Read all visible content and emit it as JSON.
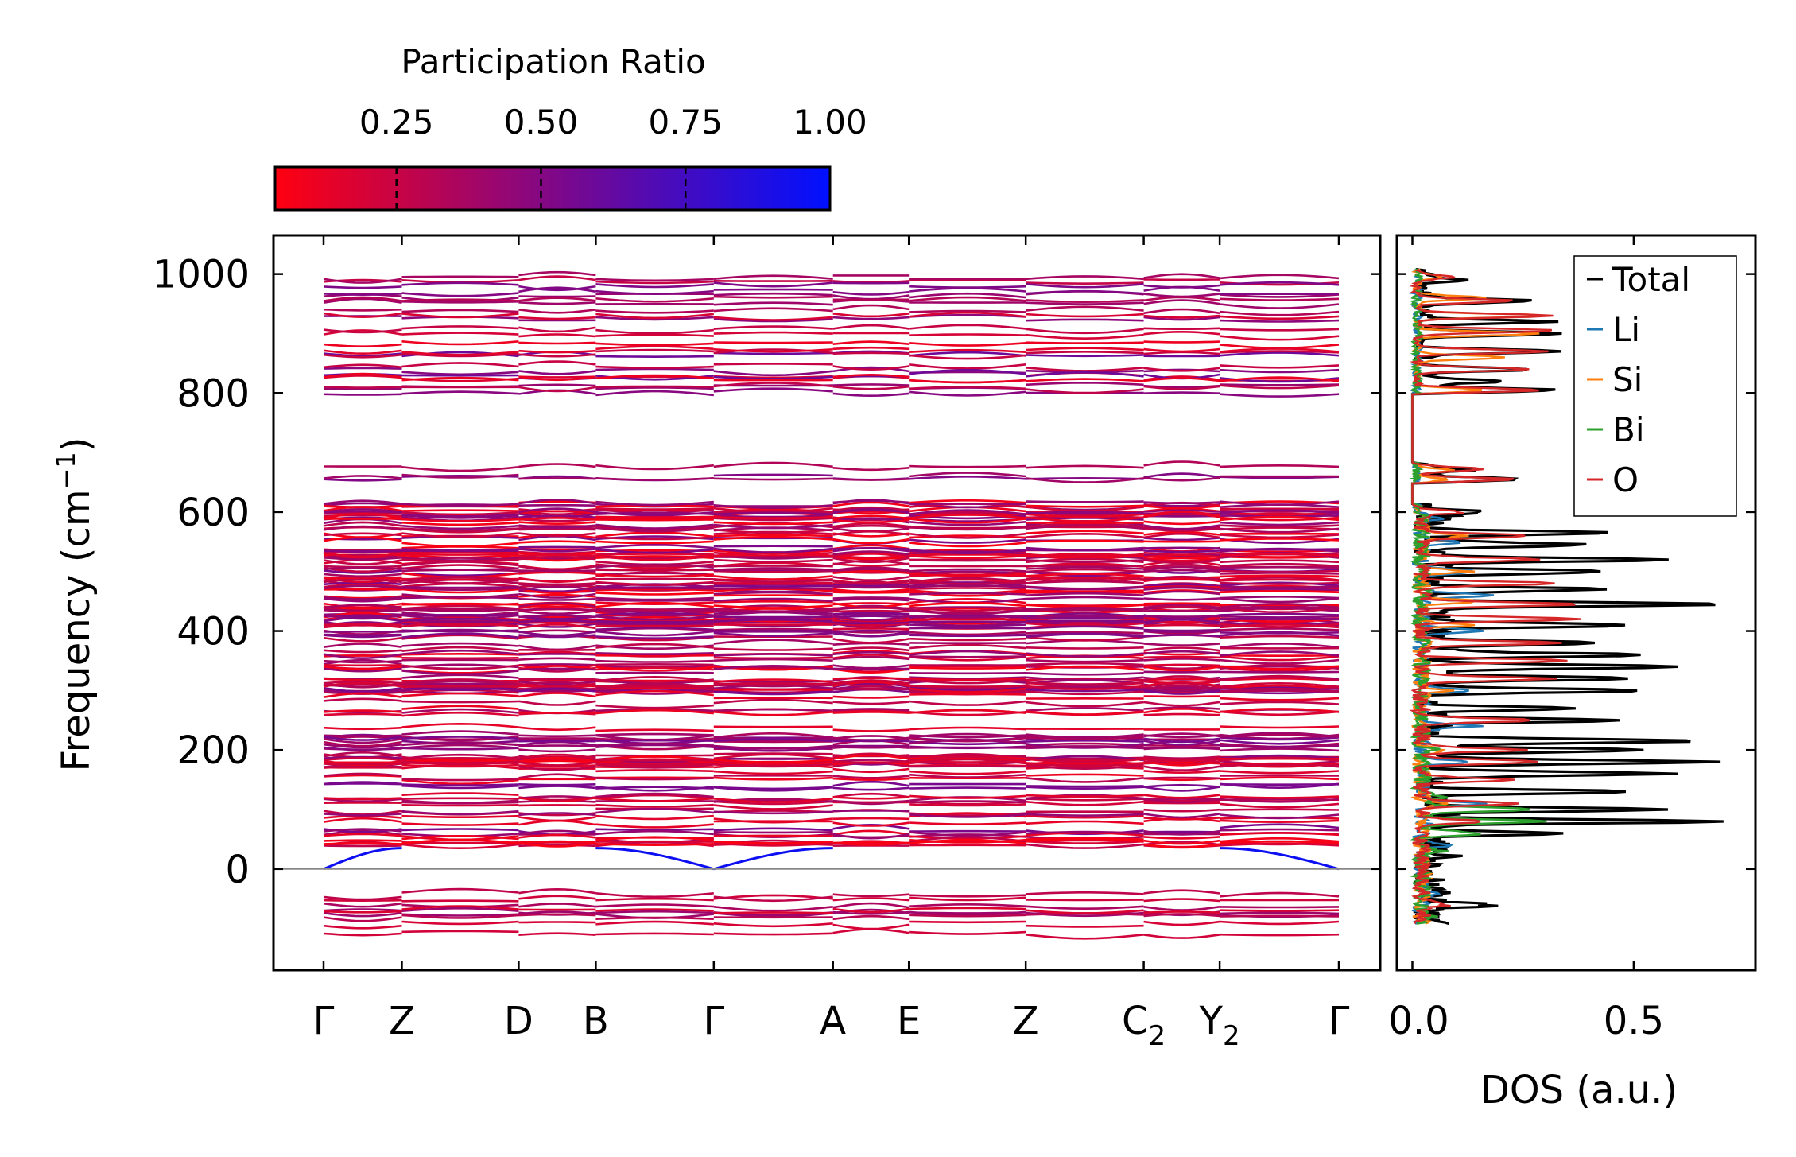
{
  "colorbar": {
    "title": "Participation Ratio",
    "ticks": [
      0.25,
      0.5,
      0.75,
      1.0
    ],
    "tick_labels": [
      "0.25",
      "0.50",
      "0.75",
      "1.00"
    ],
    "range": [
      0.04,
      1.0
    ],
    "color_low": "#ff0010",
    "color_high": "#0010ff"
  },
  "chart_data": [
    {
      "type": "line",
      "name": "phonon-band-structure",
      "ylabel": "Frequency (cm",
      "ylabel_sup": "−1",
      "ylabel_tail": ")",
      "ylim": [
        -170,
        1065
      ],
      "yticks": [
        0,
        200,
        400,
        600,
        800,
        1000
      ],
      "ytick_labels": [
        "0",
        "200",
        "400",
        "600",
        "800",
        "1000"
      ],
      "kpoints": [
        {
          "label": "Γ",
          "sub": ""
        },
        {
          "label": "Z",
          "sub": ""
        },
        {
          "label": "D",
          "sub": ""
        },
        {
          "label": "B",
          "sub": ""
        },
        {
          "label": "Γ",
          "sub": ""
        },
        {
          "label": "A",
          "sub": ""
        },
        {
          "label": "E",
          "sub": ""
        },
        {
          "label": "Z",
          "sub": ""
        },
        {
          "label": "C",
          "sub": "2"
        },
        {
          "label": "Y",
          "sub": "2"
        },
        {
          "label": "Γ",
          "sub": ""
        }
      ],
      "kpath_distance": [
        0,
        0.67,
        1.67,
        2.33,
        3.34,
        4.36,
        5.01,
        6.01,
        7.02,
        7.67,
        8.69
      ],
      "zero_line": 0,
      "branch_frequency_groups": [
        {
          "range": [
            800,
            1005
          ],
          "count": 24,
          "participation": 0.35
        },
        {
          "range": [
            655,
            680
          ],
          "count": 3,
          "participation": 0.4
        },
        {
          "range": [
            40,
            615
          ],
          "count": 150,
          "participation": 0.3
        },
        {
          "range": [
            -110,
            -5
          ],
          "count": 9,
          "participation": 0.3
        }
      ],
      "acoustic_branch": {
        "max_frequency": 35,
        "participation": 0.95
      }
    },
    {
      "type": "line",
      "name": "density-of-states",
      "xlabel": "DOS (a.u.)",
      "xlim": [
        -0.035,
        0.775
      ],
      "xticks": [
        0.0,
        0.5
      ],
      "xtick_labels": [
        "0.0",
        "0.5"
      ],
      "ylim": [
        -170,
        1065
      ],
      "legend_position": "top-right",
      "series": [
        {
          "name": "Total",
          "color": "#000000",
          "peaks": [
            [
              -60,
              0.14
            ],
            [
              20,
              0.04
            ],
            [
              60,
              0.3
            ],
            [
              80,
              0.66
            ],
            [
              100,
              0.55
            ],
            [
              130,
              0.45
            ],
            [
              160,
              0.53
            ],
            [
              180,
              0.64
            ],
            [
              200,
              0.5
            ],
            [
              215,
              0.62
            ],
            [
              250,
              0.42
            ],
            [
              270,
              0.3
            ],
            [
              300,
              0.5
            ],
            [
              320,
              0.46
            ],
            [
              340,
              0.55
            ],
            [
              360,
              0.48
            ],
            [
              380,
              0.4
            ],
            [
              410,
              0.47
            ],
            [
              445,
              0.68
            ],
            [
              470,
              0.4
            ],
            [
              500,
              0.42
            ],
            [
              520,
              0.52
            ],
            [
              545,
              0.35
            ],
            [
              565,
              0.38
            ],
            [
              600,
              0.14
            ],
            [
              655,
              0.22
            ],
            [
              670,
              0.1
            ],
            [
              805,
              0.3
            ],
            [
              820,
              0.2
            ],
            [
              840,
              0.25
            ],
            [
              870,
              0.3
            ],
            [
              900,
              0.33
            ],
            [
              920,
              0.3
            ],
            [
              955,
              0.25
            ],
            [
              990,
              0.1
            ]
          ]
        },
        {
          "name": "Li",
          "color": "#1f77b4",
          "peaks": [
            [
              -40,
              0.03
            ],
            [
              40,
              0.05
            ],
            [
              110,
              0.14
            ],
            [
              180,
              0.1
            ],
            [
              240,
              0.12
            ],
            [
              300,
              0.11
            ],
            [
              400,
              0.13
            ],
            [
              460,
              0.15
            ],
            [
              500,
              0.12
            ],
            [
              550,
              0.08
            ],
            [
              590,
              0.04
            ]
          ]
        },
        {
          "name": "Si",
          "color": "#ff7f0e",
          "peaks": [
            [
              110,
              0.06
            ],
            [
              200,
              0.05
            ],
            [
              300,
              0.06
            ],
            [
              410,
              0.1
            ],
            [
              450,
              0.12
            ],
            [
              500,
              0.1
            ],
            [
              560,
              0.09
            ],
            [
              655,
              0.06
            ],
            [
              670,
              0.08
            ],
            [
              805,
              0.15
            ],
            [
              860,
              0.2
            ],
            [
              900,
              0.28
            ],
            [
              930,
              0.3
            ],
            [
              960,
              0.16
            ],
            [
              995,
              0.06
            ]
          ]
        },
        {
          "name": "Bi",
          "color": "#2ca02c",
          "peaks": [
            [
              -80,
              0.02
            ],
            [
              30,
              0.05
            ],
            [
              60,
              0.14
            ],
            [
              80,
              0.28
            ],
            [
              100,
              0.26
            ],
            [
              120,
              0.06
            ],
            [
              200,
              0.03
            ]
          ]
        },
        {
          "name": "O",
          "color": "#d62728",
          "peaks": [
            [
              -60,
              0.06
            ],
            [
              80,
              0.15
            ],
            [
              110,
              0.22
            ],
            [
              150,
              0.2
            ],
            [
              180,
              0.28
            ],
            [
              200,
              0.22
            ],
            [
              250,
              0.26
            ],
            [
              320,
              0.3
            ],
            [
              350,
              0.33
            ],
            [
              380,
              0.3
            ],
            [
              420,
              0.38
            ],
            [
              445,
              0.37
            ],
            [
              480,
              0.3
            ],
            [
              520,
              0.26
            ],
            [
              560,
              0.25
            ],
            [
              600,
              0.1
            ],
            [
              655,
              0.22
            ],
            [
              672,
              0.15
            ],
            [
              805,
              0.28
            ],
            [
              840,
              0.25
            ],
            [
              870,
              0.3
            ],
            [
              905,
              0.32
            ],
            [
              930,
              0.31
            ],
            [
              955,
              0.22
            ],
            [
              995,
              0.08
            ]
          ]
        }
      ]
    }
  ]
}
